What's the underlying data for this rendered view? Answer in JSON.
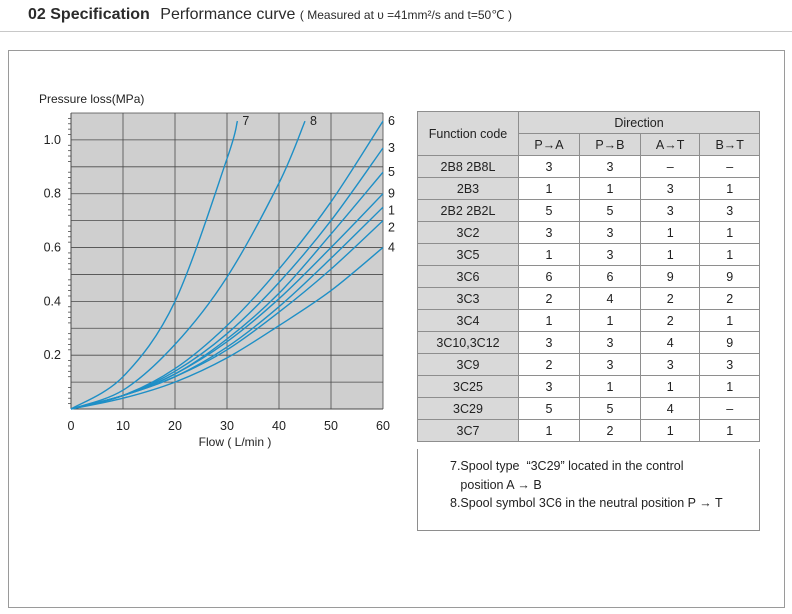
{
  "header": {
    "section_title": "02 Specification",
    "subtitle": "Performance curve",
    "condition": "( Measured at υ =41mm²/s and t=50℃ )"
  },
  "chart_data": {
    "type": "line",
    "title": "",
    "ylabel": "Pressure loss(MPa)",
    "xlabel": "Flow ( L/min )",
    "xlim": [
      0,
      60
    ],
    "ylim": [
      0,
      1.1
    ],
    "xticks": [
      0,
      10,
      20,
      30,
      40,
      50,
      60
    ],
    "yticks": [
      0.2,
      0.4,
      0.6,
      0.8,
      1.0
    ],
    "grid": true,
    "line_color": "#1e8fc6",
    "series": [
      {
        "name": "7",
        "x": [
          0,
          10,
          20,
          30,
          32
        ],
        "y": [
          0,
          0.12,
          0.4,
          0.93,
          1.07
        ]
      },
      {
        "name": "8",
        "x": [
          0,
          10,
          20,
          30,
          40,
          45
        ],
        "y": [
          0,
          0.07,
          0.24,
          0.49,
          0.84,
          1.07
        ]
      },
      {
        "name": "6",
        "x": [
          0,
          10,
          20,
          30,
          40,
          50,
          60
        ],
        "y": [
          0,
          0.05,
          0.15,
          0.31,
          0.52,
          0.77,
          1.07
        ]
      },
      {
        "name": "3",
        "x": [
          0,
          10,
          20,
          30,
          40,
          50,
          60
        ],
        "y": [
          0,
          0.05,
          0.14,
          0.28,
          0.47,
          0.7,
          0.97
        ]
      },
      {
        "name": "5",
        "x": [
          0,
          10,
          20,
          30,
          40,
          50,
          60
        ],
        "y": [
          0,
          0.05,
          0.13,
          0.26,
          0.43,
          0.65,
          0.88
        ]
      },
      {
        "name": "9",
        "x": [
          0,
          10,
          20,
          30,
          40,
          50,
          60
        ],
        "y": [
          0,
          0.05,
          0.13,
          0.25,
          0.41,
          0.6,
          0.8
        ]
      },
      {
        "name": "1",
        "x": [
          0,
          10,
          20,
          30,
          40,
          50,
          60
        ],
        "y": [
          0,
          0.05,
          0.12,
          0.23,
          0.38,
          0.56,
          0.75
        ]
      },
      {
        "name": "2",
        "x": [
          0,
          10,
          20,
          30,
          40,
          50,
          60
        ],
        "y": [
          0,
          0.05,
          0.12,
          0.22,
          0.36,
          0.52,
          0.7
        ]
      },
      {
        "name": "4",
        "x": [
          0,
          10,
          20,
          30,
          40,
          50,
          60
        ],
        "y": [
          0,
          0.04,
          0.1,
          0.19,
          0.31,
          0.44,
          0.6
        ]
      }
    ]
  },
  "table": {
    "function_code_header": "Function code",
    "direction_header": "Direction",
    "columns": [
      "P→A",
      "P→B",
      "A→T",
      "B→T"
    ],
    "rows": [
      {
        "code": "2B8  2B8L",
        "values": [
          "3",
          "3",
          "–",
          "–"
        ]
      },
      {
        "code": "2B3",
        "values": [
          "1",
          "1",
          "3",
          "1"
        ]
      },
      {
        "code": "2B2  2B2L",
        "values": [
          "5",
          "5",
          "3",
          "3"
        ]
      },
      {
        "code": "3C2",
        "values": [
          "3",
          "3",
          "1",
          "1"
        ]
      },
      {
        "code": "3C5",
        "values": [
          "1",
          "3",
          "1",
          "1"
        ]
      },
      {
        "code": "3C6",
        "values": [
          "6",
          "6",
          "9",
          "9"
        ]
      },
      {
        "code": "3C3",
        "values": [
          "2",
          "4",
          "2",
          "2"
        ]
      },
      {
        "code": "3C4",
        "values": [
          "1",
          "1",
          "2",
          "1"
        ]
      },
      {
        "code": "3C10,3C12",
        "values": [
          "3",
          "3",
          "4",
          "9"
        ]
      },
      {
        "code": "3C9",
        "values": [
          "2",
          "3",
          "3",
          "3"
        ]
      },
      {
        "code": "3C25",
        "values": [
          "3",
          "1",
          "1",
          "1"
        ]
      },
      {
        "code": "3C29",
        "values": [
          "5",
          "5",
          "4",
          "–"
        ]
      },
      {
        "code": "3C7",
        "values": [
          "1",
          "2",
          "1",
          "1"
        ]
      }
    ]
  },
  "notes": [
    "7.Spool type  “3C29” located in the control",
    "   position A → B",
    "8.Spool symbol 3C6 in the neutral position P → T"
  ]
}
